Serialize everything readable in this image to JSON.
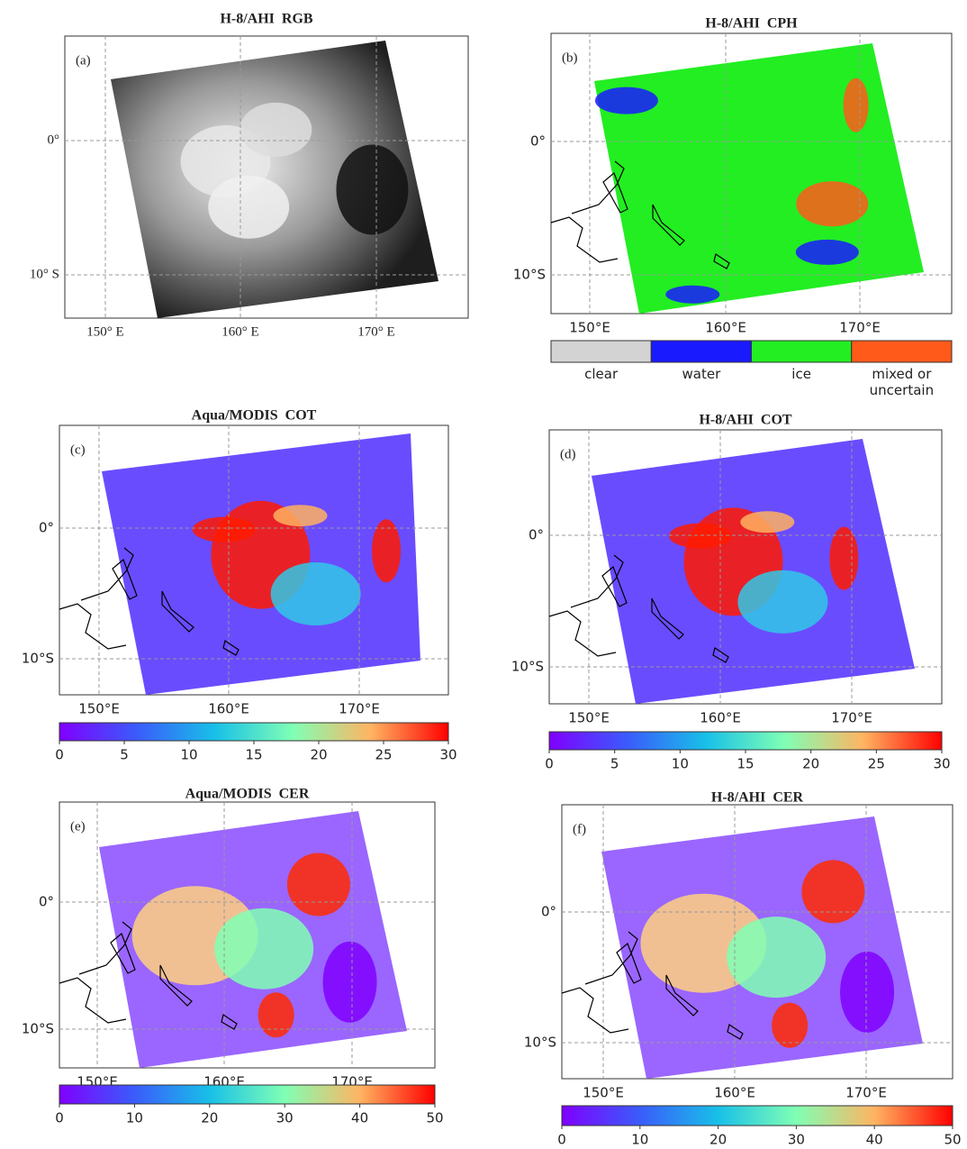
{
  "figure": {
    "panels": [
      {
        "label": "(a)",
        "title": "H-8/AHI  RGB",
        "lat_labels": [
          "0°",
          "10° S"
        ],
        "lon_labels": [
          "150° E",
          "160° E",
          "170° E"
        ]
      },
      {
        "label": "(b)",
        "title": "H-8/AHI  CPH",
        "lat_labels": [
          "0°",
          "10°S"
        ],
        "lon_labels": [
          "150°E",
          "160°E",
          "170°E"
        ],
        "legend": [
          {
            "label": "clear",
            "color": "#d3d3d3"
          },
          {
            "label": "water",
            "color": "#1a1aff"
          },
          {
            "label": "ice",
            "color": "#22ee22"
          },
          {
            "label": "mixed  or\nuncertain",
            "color": "#ff5a1a"
          }
        ]
      },
      {
        "label": "(c)",
        "title": "Aqua/MODIS  COT",
        "lat_labels": [
          "0°",
          "10°S"
        ],
        "lon_labels": [
          "150°E",
          "160°E",
          "170°E"
        ],
        "colorbar": {
          "lim": [
            0,
            30
          ],
          "ticks": [
            0,
            5,
            10,
            15,
            20,
            25,
            30
          ]
        }
      },
      {
        "label": "(d)",
        "title": "H-8/AHI  COT",
        "lat_labels": [
          "0°",
          "10°S"
        ],
        "lon_labels": [
          "150°E",
          "160°E",
          "170°E"
        ],
        "colorbar": {
          "lim": [
            0,
            30
          ],
          "ticks": [
            0,
            5,
            10,
            15,
            20,
            25,
            30
          ]
        }
      },
      {
        "label": "(e)",
        "title": "Aqua/MODIS  CER",
        "lat_labels": [
          "0°",
          "10°S"
        ],
        "lon_labels": [
          "150°E",
          "160°E",
          "170°E"
        ],
        "colorbar": {
          "lim": [
            0,
            50
          ],
          "ticks": [
            0,
            10,
            20,
            30,
            40,
            50
          ]
        }
      },
      {
        "label": "(f)",
        "title": "H-8/AHI  CER",
        "lat_labels": [
          "0°",
          "10°S"
        ],
        "lon_labels": [
          "150°E",
          "160°E",
          "170°E"
        ],
        "colorbar": {
          "lim": [
            0,
            50
          ],
          "ticks": [
            0,
            10,
            20,
            30,
            40,
            50
          ]
        }
      }
    ]
  }
}
